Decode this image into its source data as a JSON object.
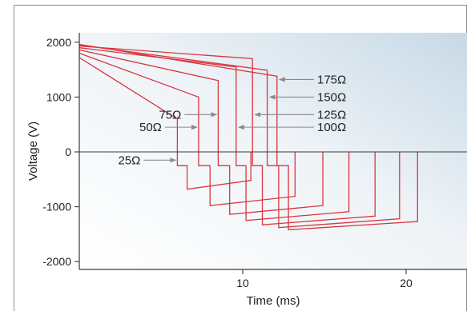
{
  "chart_data": {
    "type": "line",
    "title": "",
    "xlabel": "Time (ms)",
    "ylabel": "Voltage (V)",
    "xlim": [
      0,
      23.5
    ],
    "ylim": [
      -2200,
      2200
    ],
    "x_ticks": [
      10,
      20
    ],
    "y_ticks": [
      2000,
      1000,
      0,
      -1000,
      -2000
    ],
    "x_tick_labels": [
      "10",
      "20"
    ],
    "y_tick_labels": [
      "2000",
      "1000",
      "0",
      "-1000",
      "-2000"
    ],
    "grid": false,
    "legend": "none",
    "colors": {
      "series": "#d9363e",
      "annotation": "#8a8a8a",
      "axis": "#3a3a3a"
    },
    "series": [
      {
        "name": "25Ω",
        "x": [
          0,
          6.0,
          6.0,
          6.6,
          6.6,
          10.5,
          10.5
        ],
        "y": [
          1720,
          600,
          -250,
          -250,
          -680,
          -520,
          0
        ]
      },
      {
        "name": "50Ω",
        "x": [
          0,
          7.3,
          7.3,
          8.0,
          8.0,
          13.2,
          13.2
        ],
        "y": [
          1800,
          1000,
          -250,
          -250,
          -980,
          -810,
          0
        ]
      },
      {
        "name": "75Ω",
        "x": [
          0,
          8.5,
          8.5,
          9.2,
          9.2,
          14.9,
          14.9
        ],
        "y": [
          1860,
          1300,
          -250,
          -250,
          -1140,
          -980,
          0
        ]
      },
      {
        "name": "100Ω",
        "x": [
          0,
          9.6,
          9.6,
          10.2,
          10.2,
          16.5,
          16.5
        ],
        "y": [
          1900,
          1550,
          -250,
          -250,
          -1250,
          -1090,
          0
        ]
      },
      {
        "name": "125Ω",
        "x": [
          0,
          10.6,
          10.6,
          11.2,
          11.2,
          18.1,
          18.1
        ],
        "y": [
          1930,
          1700,
          -250,
          -250,
          -1330,
          -1170,
          0
        ]
      },
      {
        "name": "150Ω",
        "x": [
          0,
          11.5,
          11.5,
          12.2,
          12.2,
          19.6,
          19.6
        ],
        "y": [
          1950,
          1490,
          -250,
          -250,
          -1380,
          -1220,
          0
        ]
      },
      {
        "name": "175Ω",
        "x": [
          0,
          12.1,
          12.1,
          12.8,
          12.8,
          20.7,
          20.7
        ],
        "y": [
          1960,
          1380,
          -250,
          -250,
          -1420,
          -1270,
          0
        ]
      }
    ],
    "annotations": [
      {
        "text": "25Ω",
        "side": "left",
        "arrow_to": [
          6.0,
          -150
        ]
      },
      {
        "text": "50Ω",
        "side": "left",
        "arrow_to": [
          7.3,
          450
        ]
      },
      {
        "text": "75Ω",
        "side": "left",
        "arrow_to": [
          8.5,
          680
        ]
      },
      {
        "text": "100Ω",
        "side": "right",
        "arrow_to": [
          9.6,
          450
        ]
      },
      {
        "text": "125Ω",
        "side": "right",
        "arrow_to": [
          10.6,
          680
        ]
      },
      {
        "text": "150Ω",
        "side": "right",
        "arrow_to": [
          11.5,
          1000
        ]
      },
      {
        "text": "175Ω",
        "side": "right",
        "arrow_to": [
          12.1,
          1320
        ]
      }
    ]
  }
}
